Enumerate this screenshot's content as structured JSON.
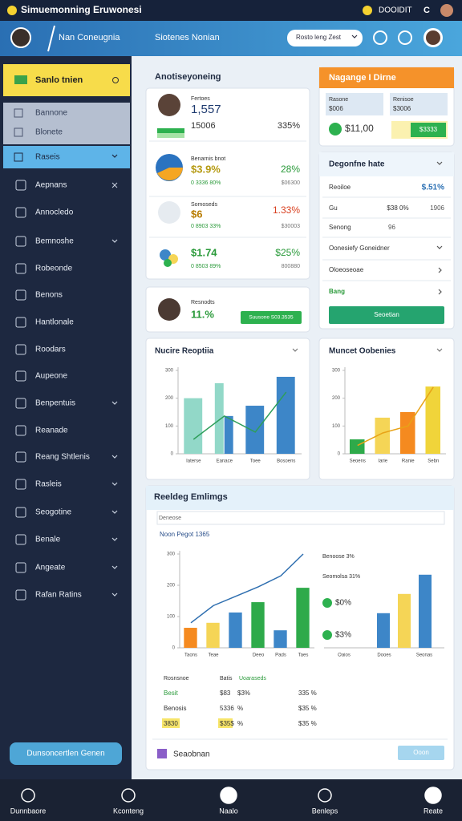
{
  "status_bar": {
    "title": "Simuemonning Eruwonesi",
    "user": "DOOIDIT",
    "badge": "C"
  },
  "header": {
    "name": "Nan Coneugnia",
    "subtitle": "Siotenes Nonian",
    "search": "Rosto leng Zest"
  },
  "sidebar": {
    "top": "Sanlo tnien",
    "section": [
      "Bannone",
      "Blonete"
    ],
    "active": "Raseis",
    "items": [
      "Aepnans",
      "Annocledo",
      "Bemnoshe",
      "Robeonde",
      "Benons",
      "Hantlonale",
      "Roodars",
      "Aupeone",
      "Benpentuis",
      "Reanade",
      "Reang Shtlenis",
      "Rasleis",
      "Seogotine",
      "Benale",
      "Angeate",
      "Rafan Ratins"
    ],
    "button": "Dunsoncertlen Genen"
  },
  "activity": {
    "title": "Anotiseyoneing",
    "rows": [
      {
        "label": "Fertoes",
        "value": "1,557",
        "sub": "15006",
        "change": "335%"
      },
      {
        "label": "Benarnis bnot",
        "value": "$3.9%",
        "sub": "0 3336 80%",
        "change": "28%",
        "extra": "$06300"
      },
      {
        "label": "Somoseds",
        "value": "$6",
        "sub": "0 8903 33%",
        "change": "1.33%",
        "extra": "$30003"
      },
      {
        "value": "$1.74",
        "sub": "0 8503 89%",
        "change": "$25%",
        "extra": "800880"
      }
    ]
  },
  "profile": {
    "label": "Resnodts",
    "value": "11.%",
    "button": "Suusone S03.3535"
  },
  "summary": {
    "title": "Nagange I Dirne",
    "boxes": [
      {
        "label": "Rasone",
        "value": "$006"
      },
      {
        "label": "Renisoe",
        "value": "$3006"
      }
    ],
    "amount": "$11,00",
    "button": "$3333"
  },
  "details": {
    "title": "Degonfne hate",
    "rows": [
      [
        "Reoiloe",
        "$.51%"
      ],
      [
        "Gu",
        "$38 0%",
        "1906"
      ],
      [
        "Senong",
        "96"
      ]
    ],
    "links": [
      "Oonesiefy Goneidner",
      "Oloeoseoae",
      "Bang"
    ],
    "button": "Seoetian"
  },
  "chart_left": {
    "type": "bar",
    "title": "Nucire Reoptiia",
    "categories": [
      "Iaterse",
      "Eanace",
      "Toee",
      "Bosoens"
    ],
    "ylim": [
      0,
      300
    ],
    "yticks": [
      0,
      100,
      200,
      300
    ],
    "grid": false,
    "series": [
      {
        "type": "bar",
        "color": "#92d8c8",
        "values": [
          200,
          254,
          null,
          null
        ]
      },
      {
        "type": "bar",
        "color": "#3d86c8",
        "values": [
          null,
          136,
          173,
          277
        ]
      },
      {
        "type": "line",
        "color": "#2e9e5a",
        "values": [
          52,
          136,
          78,
          222
        ]
      }
    ]
  },
  "chart_right": {
    "type": "bar",
    "title": "Muncet Oobenies",
    "categories": [
      "Seoens",
      "Iarie",
      "Ranie",
      "Sebn"
    ],
    "ylim": [
      0,
      300
    ],
    "yticks": [
      0,
      100,
      200,
      300
    ],
    "grid": false,
    "series": [
      {
        "type": "bar",
        "colors": [
          "#2eaa4a",
          "#f5d556",
          "#f58a1f",
          "#f0d43a"
        ],
        "values": [
          52,
          130,
          150,
          242
        ]
      },
      {
        "type": "line",
        "color": "#e8a317",
        "values": [
          30,
          75,
          100,
          240
        ]
      }
    ]
  },
  "report": {
    "title": "Reeldeg Emlimgs",
    "search": "Deneose",
    "subtitle": "Noon Pegot 1365",
    "chart": {
      "type": "bar",
      "categories": [
        "Taons",
        "Teae",
        null,
        "Deeo",
        "Pads",
        "Taes"
      ],
      "ylim": [
        0,
        300
      ],
      "yticks": [
        0,
        100,
        200,
        300
      ],
      "grid": false,
      "series": [
        {
          "type": "bar",
          "colors": [
            "#f58a1f",
            "#f5d556",
            "#3d86c8",
            "#2eaa4a",
            "#3d86c8",
            "#2eaa4a"
          ],
          "values": [
            64,
            80,
            113,
            146,
            56,
            192
          ]
        },
        {
          "type": "line",
          "color": "#2f6fb0",
          "values": [
            80,
            135,
            165,
            195,
            230,
            300
          ]
        }
      ]
    },
    "side_chart": {
      "type": "bar",
      "annotations": [
        "Benoose 3%",
        "Seomolsa 31%",
        "$0%",
        "$3%"
      ],
      "categories": [
        "Oaios",
        "Dooes",
        "Seonas"
      ],
      "ylim": [
        0,
        100
      ],
      "series": [
        {
          "type": "bar",
          "colors": [
            "#3d86c8",
            "#f5d556",
            "#3d86c8"
          ],
          "values": [
            45,
            70,
            95
          ]
        }
      ]
    },
    "table": {
      "header": [
        "Rosnsnoe",
        "Batis",
        "Uoaraseds"
      ],
      "rows": [
        [
          "Besit",
          "$83",
          "$3%",
          "335 %"
        ],
        [
          "Benosis",
          "5336",
          "%",
          "$35 %"
        ],
        [
          "3830",
          "$35$",
          "%",
          "$35 %"
        ]
      ]
    },
    "footer": "Seaobnan",
    "button": "Ooon"
  },
  "bottom_nav": [
    "Dunnbaore",
    "Kconteng",
    "Naalo",
    "Benleps",
    "Reate"
  ]
}
